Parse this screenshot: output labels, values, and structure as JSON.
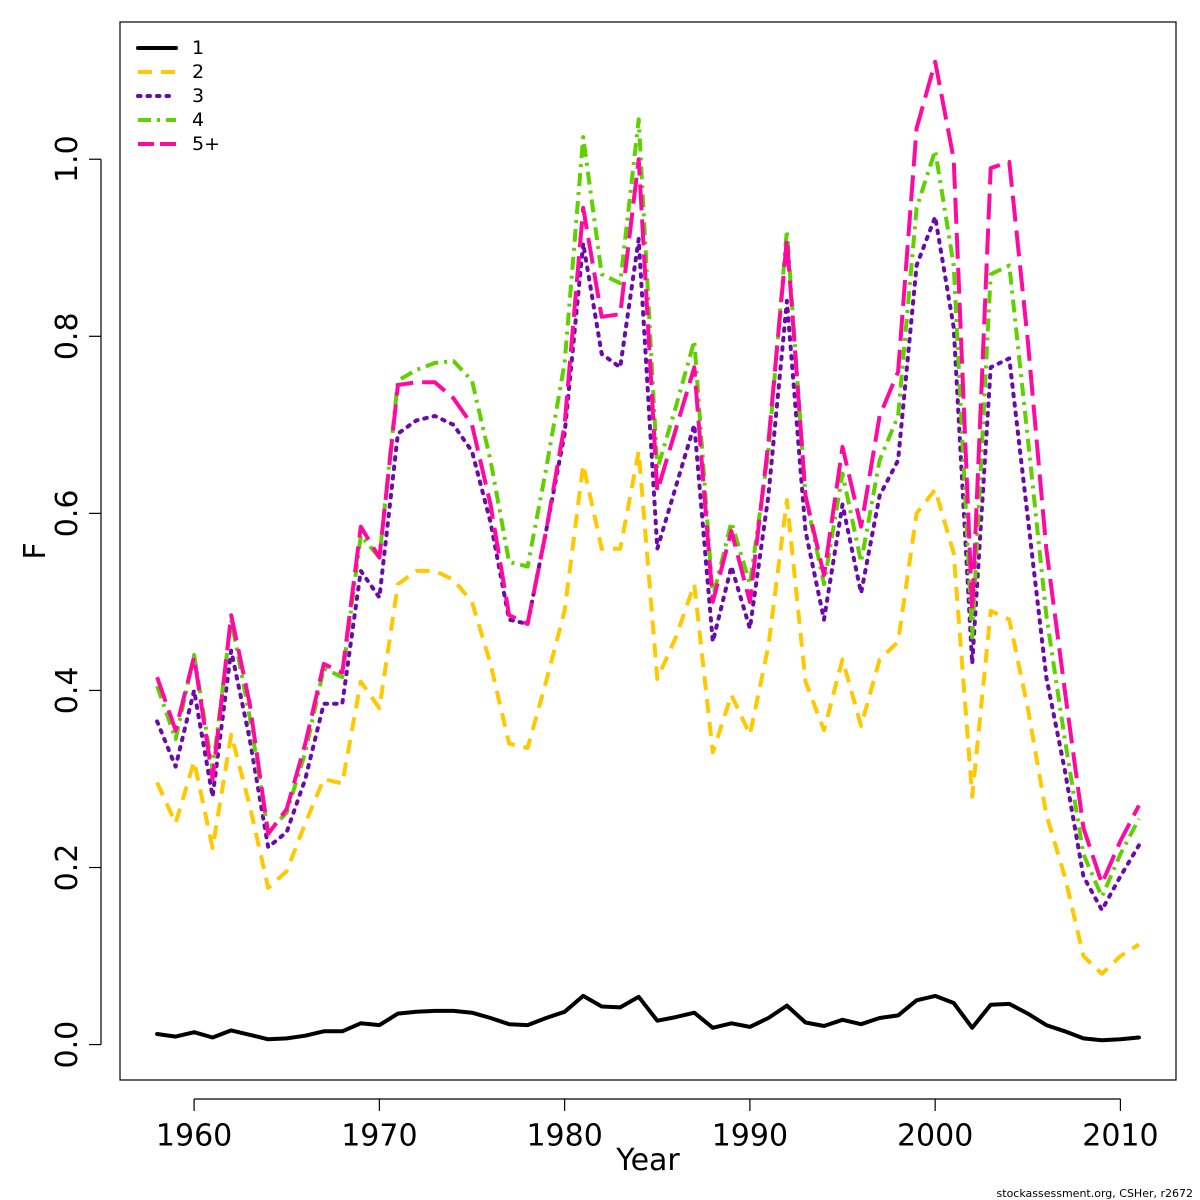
{
  "chart_data": {
    "type": "line",
    "xlabel": "Year",
    "ylabel": "F",
    "xlim": [
      1956,
      2013
    ],
    "ylim": [
      -0.04,
      1.155
    ],
    "x_ticks": [
      1960,
      1970,
      1980,
      1990,
      2000,
      2010
    ],
    "x_tick_labels": [
      "1960",
      "1970",
      "1980",
      "1990",
      "2000",
      "2010"
    ],
    "y_ticks": [
      0.0,
      0.2,
      0.4,
      0.6,
      0.8,
      1.0
    ],
    "y_tick_labels": [
      "0.0",
      "0.2",
      "0.4",
      "0.6",
      "0.8",
      "1.0"
    ],
    "legend_position": "top-left",
    "grid": false,
    "credit": "stockassessment.org, CSHer, r2672",
    "x": [
      1958,
      1959,
      1960,
      1961,
      1962,
      1963,
      1964,
      1965,
      1966,
      1967,
      1968,
      1969,
      1970,
      1971,
      1972,
      1973,
      1974,
      1975,
      1976,
      1977,
      1978,
      1979,
      1980,
      1981,
      1982,
      1983,
      1984,
      1985,
      1986,
      1987,
      1988,
      1989,
      1990,
      1991,
      1992,
      1993,
      1994,
      1995,
      1996,
      1997,
      1998,
      1999,
      2000,
      2001,
      2002,
      2003,
      2004,
      2005,
      2006,
      2007,
      2008,
      2009,
      2010,
      2011
    ],
    "series": [
      {
        "name": "1",
        "color": "#000000",
        "dash": "solid",
        "values": [
          0.012,
          0.009,
          0.014,
          0.008,
          0.016,
          0.011,
          0.006,
          0.007,
          0.01,
          0.015,
          0.015,
          0.024,
          0.022,
          0.035,
          0.037,
          0.038,
          0.038,
          0.036,
          0.03,
          0.023,
          0.022,
          0.03,
          0.037,
          0.055,
          0.043,
          0.042,
          0.054,
          0.027,
          0.031,
          0.036,
          0.019,
          0.024,
          0.02,
          0.03,
          0.044,
          0.025,
          0.021,
          0.028,
          0.023,
          0.03,
          0.033,
          0.05,
          0.055,
          0.047,
          0.019,
          0.045,
          0.046,
          0.035,
          0.022,
          0.015,
          0.007,
          0.005,
          0.006,
          0.008
        ]
      },
      {
        "name": "2",
        "color": "#ffc800",
        "dash": "dashed",
        "values": [
          0.296,
          0.25,
          0.32,
          0.222,
          0.35,
          0.27,
          0.177,
          0.196,
          0.25,
          0.3,
          0.295,
          0.41,
          0.38,
          0.52,
          0.535,
          0.535,
          0.525,
          0.5,
          0.43,
          0.34,
          0.335,
          0.41,
          0.49,
          0.655,
          0.56,
          0.56,
          0.67,
          0.413,
          0.46,
          0.52,
          0.33,
          0.395,
          0.35,
          0.45,
          0.615,
          0.41,
          0.355,
          0.435,
          0.36,
          0.435,
          0.455,
          0.6,
          0.627,
          0.555,
          0.28,
          0.49,
          0.48,
          0.38,
          0.26,
          0.19,
          0.1,
          0.08,
          0.1,
          0.113
        ]
      },
      {
        "name": "3",
        "color": "#6a0aab",
        "dash": "dotted",
        "values": [
          0.365,
          0.314,
          0.4,
          0.28,
          0.445,
          0.345,
          0.223,
          0.24,
          0.3,
          0.385,
          0.385,
          0.535,
          0.505,
          0.69,
          0.705,
          0.71,
          0.7,
          0.67,
          0.59,
          0.48,
          0.475,
          0.58,
          0.69,
          0.905,
          0.78,
          0.765,
          0.91,
          0.56,
          0.63,
          0.7,
          0.455,
          0.54,
          0.47,
          0.62,
          0.84,
          0.58,
          0.48,
          0.61,
          0.51,
          0.62,
          0.66,
          0.88,
          0.935,
          0.81,
          0.43,
          0.765,
          0.775,
          0.595,
          0.415,
          0.31,
          0.19,
          0.152,
          0.19,
          0.225
        ]
      },
      {
        "name": "4",
        "color": "#61d000",
        "dash": "dashdot",
        "values": [
          0.405,
          0.345,
          0.44,
          0.31,
          0.48,
          0.37,
          0.24,
          0.262,
          0.33,
          0.425,
          0.415,
          0.575,
          0.55,
          0.75,
          0.762,
          0.77,
          0.772,
          0.75,
          0.66,
          0.545,
          0.54,
          0.65,
          0.77,
          1.025,
          0.87,
          0.86,
          1.045,
          0.65,
          0.72,
          0.795,
          0.505,
          0.59,
          0.52,
          0.67,
          0.92,
          0.62,
          0.52,
          0.645,
          0.545,
          0.66,
          0.71,
          0.945,
          1.01,
          0.88,
          0.46,
          0.87,
          0.88,
          0.685,
          0.485,
          0.345,
          0.215,
          0.167,
          0.215,
          0.255
        ]
      },
      {
        "name": "5+",
        "color": "#ff0aa0",
        "dash": "longdash",
        "values": [
          0.415,
          0.355,
          0.438,
          0.3,
          0.485,
          0.385,
          0.238,
          0.266,
          0.34,
          0.43,
          0.42,
          0.585,
          0.55,
          0.745,
          0.748,
          0.748,
          0.73,
          0.7,
          0.61,
          0.485,
          0.475,
          0.58,
          0.7,
          0.945,
          0.822,
          0.825,
          1.0,
          0.625,
          0.695,
          0.765,
          0.5,
          0.58,
          0.5,
          0.68,
          0.91,
          0.62,
          0.53,
          0.675,
          0.585,
          0.71,
          0.76,
          1.035,
          1.11,
          1.0,
          0.49,
          0.99,
          0.997,
          0.795,
          0.56,
          0.4,
          0.245,
          0.182,
          0.23,
          0.27
        ]
      }
    ]
  }
}
